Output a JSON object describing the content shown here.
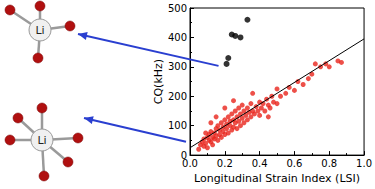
{
  "chart_data": {
    "type": "scatter",
    "x_label": "Longitudinal Strain Index (LSI)",
    "y_label": "CQ(kHz)",
    "xlim": [
      0,
      1
    ],
    "xticks": [
      {
        "value": 0,
        "label": "0.0"
      },
      {
        "value": 0.2,
        "label": "0.2"
      },
      {
        "value": 0.4,
        "label": "0.4"
      },
      {
        "value": 0.6,
        "label": "0.6"
      },
      {
        "value": 0.8,
        "label": "0.8"
      },
      {
        "value": 1,
        "label": "1.0"
      }
    ],
    "ylim": [
      0,
      500
    ],
    "yticks": [
      0,
      100,
      200,
      300,
      400,
      500
    ],
    "grid": false,
    "series": [
      {
        "type": "scatter",
        "color": "#e8241c",
        "marker": "circle",
        "x": [
          0.05,
          0.06,
          0.07,
          0.08,
          0.08,
          0.09,
          0.1,
          0.1,
          0.11,
          0.11,
          0.12,
          0.12,
          0.13,
          0.13,
          0.14,
          0.14,
          0.15,
          0.15,
          0.16,
          0.16,
          0.17,
          0.17,
          0.18,
          0.18,
          0.19,
          0.19,
          0.2,
          0.2,
          0.21,
          0.21,
          0.22,
          0.22,
          0.23,
          0.23,
          0.24,
          0.24,
          0.25,
          0.25,
          0.26,
          0.26,
          0.27,
          0.27,
          0.28,
          0.28,
          0.29,
          0.29,
          0.3,
          0.3,
          0.31,
          0.31,
          0.32,
          0.33,
          0.33,
          0.34,
          0.35,
          0.35,
          0.36,
          0.37,
          0.38,
          0.39,
          0.4,
          0.4,
          0.41,
          0.42,
          0.43,
          0.44,
          0.45,
          0.46,
          0.47,
          0.48,
          0.5,
          0.5,
          0.52,
          0.55,
          0.57,
          0.6,
          0.62,
          0.65,
          0.68,
          0.7,
          0.72,
          0.75,
          0.78,
          0.8,
          0.85,
          0.87,
          0.15,
          0.2,
          0.25,
          0.12,
          0.09,
          0.36,
          0.45
        ],
        "values": [
          20,
          35,
          45,
          30,
          55,
          40,
          60,
          25,
          50,
          70,
          45,
          80,
          60,
          35,
          75,
          55,
          90,
          65,
          50,
          100,
          70,
          85,
          60,
          110,
          80,
          95,
          70,
          120,
          90,
          105,
          75,
          130,
          100,
          115,
          85,
          140,
          95,
          120,
          110,
          150,
          90,
          130,
          115,
          160,
          100,
          140,
          125,
          170,
          110,
          150,
          135,
          120,
          160,
          145,
          130,
          175,
          150,
          140,
          165,
          150,
          180,
          135,
          160,
          175,
          150,
          190,
          170,
          160,
          200,
          180,
          175,
          225,
          200,
          210,
          230,
          220,
          250,
          240,
          260,
          275,
          310,
          300,
          310,
          300,
          320,
          315,
          130,
          160,
          185,
          110,
          75,
          210,
          130
        ]
      },
      {
        "type": "scatter",
        "color": "#000000",
        "marker": "circle",
        "x": [
          0.21,
          0.22,
          0.24,
          0.26,
          0.29,
          0.33
        ],
        "values": [
          310,
          330,
          410,
          405,
          400,
          460
        ]
      },
      {
        "type": "line",
        "color": "#000000",
        "line_style": "solid",
        "x": [
          0,
          1
        ],
        "values": [
          25,
          395
        ]
      }
    ],
    "annotations": [
      {
        "text": "Li"
      },
      {
        "text": "Li"
      }
    ]
  }
}
